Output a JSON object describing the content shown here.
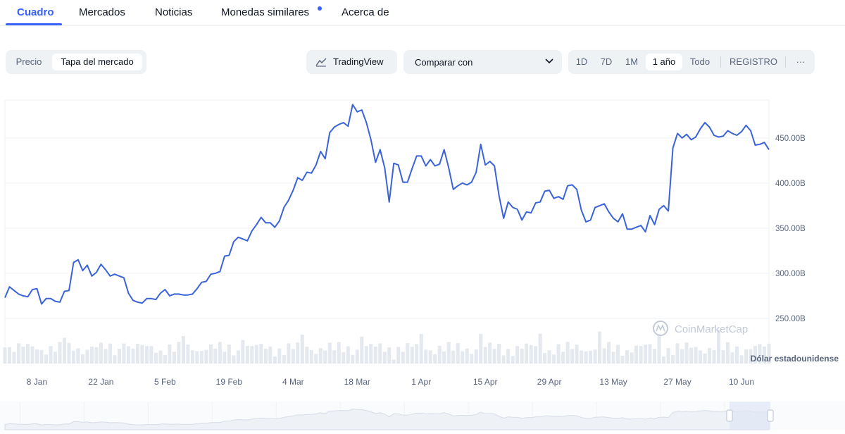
{
  "tabs": [
    {
      "label": "Cuadro",
      "active": true
    },
    {
      "label": "Mercados",
      "active": false
    },
    {
      "label": "Noticias",
      "active": false
    },
    {
      "label": "Monedas similares",
      "active": false,
      "has_dot": true
    },
    {
      "label": "Acerca de",
      "active": false
    }
  ],
  "controls": {
    "metric_toggle": [
      "Precio",
      "Tapa del mercado"
    ],
    "metric_selected": "Tapa del mercado",
    "tradingview_label": "TradingView",
    "compare_label": "Comparar con",
    "ranges": [
      "1D",
      "7D",
      "1M",
      "1 año",
      "Todo"
    ],
    "range_selected": "1 año",
    "log_label": "REGISTRO",
    "more_label": "···"
  },
  "colors": {
    "accent": "#3861fb",
    "line": "#3a63d8",
    "volume": "#e4e8ef",
    "grid": "#eef1f5"
  },
  "chart_data": {
    "type": "line",
    "watermark": "CoinMarketCap",
    "currency_label": "Dólar estadounidense",
    "y_ticks": [
      "450.00B",
      "400.00B",
      "350.00B",
      "300.00B",
      "250.00B"
    ],
    "y_tick_values": [
      450,
      400,
      350,
      300,
      250
    ],
    "ylim": [
      200,
      492
    ],
    "y_unit": "B",
    "x_ticks": [
      "8 Jan",
      "22 Jan",
      "5 Feb",
      "19 Feb",
      "4 Mar",
      "18 Mar",
      "1 Apr",
      "15 Apr",
      "29 Apr",
      "13 May",
      "27 May",
      "10 Jun"
    ],
    "x_tick_days": [
      7,
      21,
      35,
      49,
      63,
      77,
      91,
      105,
      119,
      133,
      147,
      161
    ],
    "series": [
      {
        "x": [
          0,
          1,
          2,
          3,
          4,
          5,
          6,
          7,
          8,
          9,
          10,
          11,
          12,
          13,
          14,
          15,
          16,
          17,
          18,
          19,
          20,
          21,
          22,
          23,
          24,
          25,
          26,
          27,
          28,
          29,
          30,
          31,
          32,
          33,
          34,
          35,
          36,
          37,
          38,
          39,
          40,
          41,
          42,
          43,
          44,
          45,
          46,
          47,
          48,
          49,
          50,
          51,
          52,
          53,
          54,
          55,
          56,
          57,
          58,
          59,
          60,
          61,
          62,
          63,
          64,
          65,
          66,
          67,
          68,
          69,
          70,
          71,
          72,
          73,
          74,
          75,
          76,
          77,
          78,
          79,
          80,
          81,
          82,
          83,
          84,
          85,
          86,
          87,
          88,
          89,
          90,
          91,
          92,
          93,
          94,
          95,
          96,
          97,
          98,
          99,
          100,
          101,
          102,
          103,
          104,
          105,
          106,
          107,
          108,
          109,
          110,
          111,
          112,
          113,
          114,
          115,
          116,
          117,
          118,
          119,
          120,
          121,
          122,
          123,
          124,
          125,
          126,
          127,
          128,
          129,
          130,
          131,
          132,
          133,
          134,
          135,
          136,
          137,
          138,
          139,
          140,
          141,
          142,
          143,
          144,
          145,
          146,
          147,
          148,
          149,
          150,
          151,
          152,
          153,
          154,
          155,
          156,
          157,
          158,
          159,
          160,
          161,
          162,
          163,
          164,
          165,
          166,
          167
        ],
        "values": [
          273,
          285,
          281,
          277,
          275,
          274,
          282,
          283,
          266,
          272,
          272,
          269,
          268,
          280,
          281,
          312,
          315,
          303,
          309,
          297,
          301,
          310,
          304,
          297,
          299,
          297,
          295,
          278,
          270,
          268,
          267,
          272,
          272,
          271,
          278,
          282,
          275,
          277,
          277,
          276,
          276,
          277,
          283,
          290,
          291,
          299,
          300,
          302,
          319,
          320,
          335,
          340,
          338,
          336,
          347,
          354,
          362,
          356,
          356,
          351,
          358,
          373,
          381,
          392,
          406,
          403,
          412,
          411,
          420,
          435,
          427,
          456,
          462,
          465,
          467,
          463,
          487,
          479,
          481,
          467,
          448,
          423,
          437,
          417,
          379,
          422,
          420,
          401,
          401,
          416,
          430,
          430,
          419,
          426,
          419,
          421,
          437,
          417,
          393,
          397,
          400,
          398,
          401,
          412,
          443,
          420,
          424,
          419,
          386,
          361,
          379,
          373,
          371,
          359,
          368,
          367,
          378,
          379,
          391,
          392,
          383,
          385,
          382,
          397,
          398,
          393,
          370,
          357,
          359,
          373,
          375,
          377,
          368,
          361,
          357,
          366,
          349,
          349,
          351,
          353,
          346,
          364,
          354,
          371,
          375,
          369,
          439,
          455,
          450,
          454,
          448,
          451,
          460,
          467,
          462,
          453,
          451,
          452,
          458,
          455,
          453,
          457,
          464,
          458,
          442,
          443,
          445,
          437
        ]
      }
    ]
  }
}
